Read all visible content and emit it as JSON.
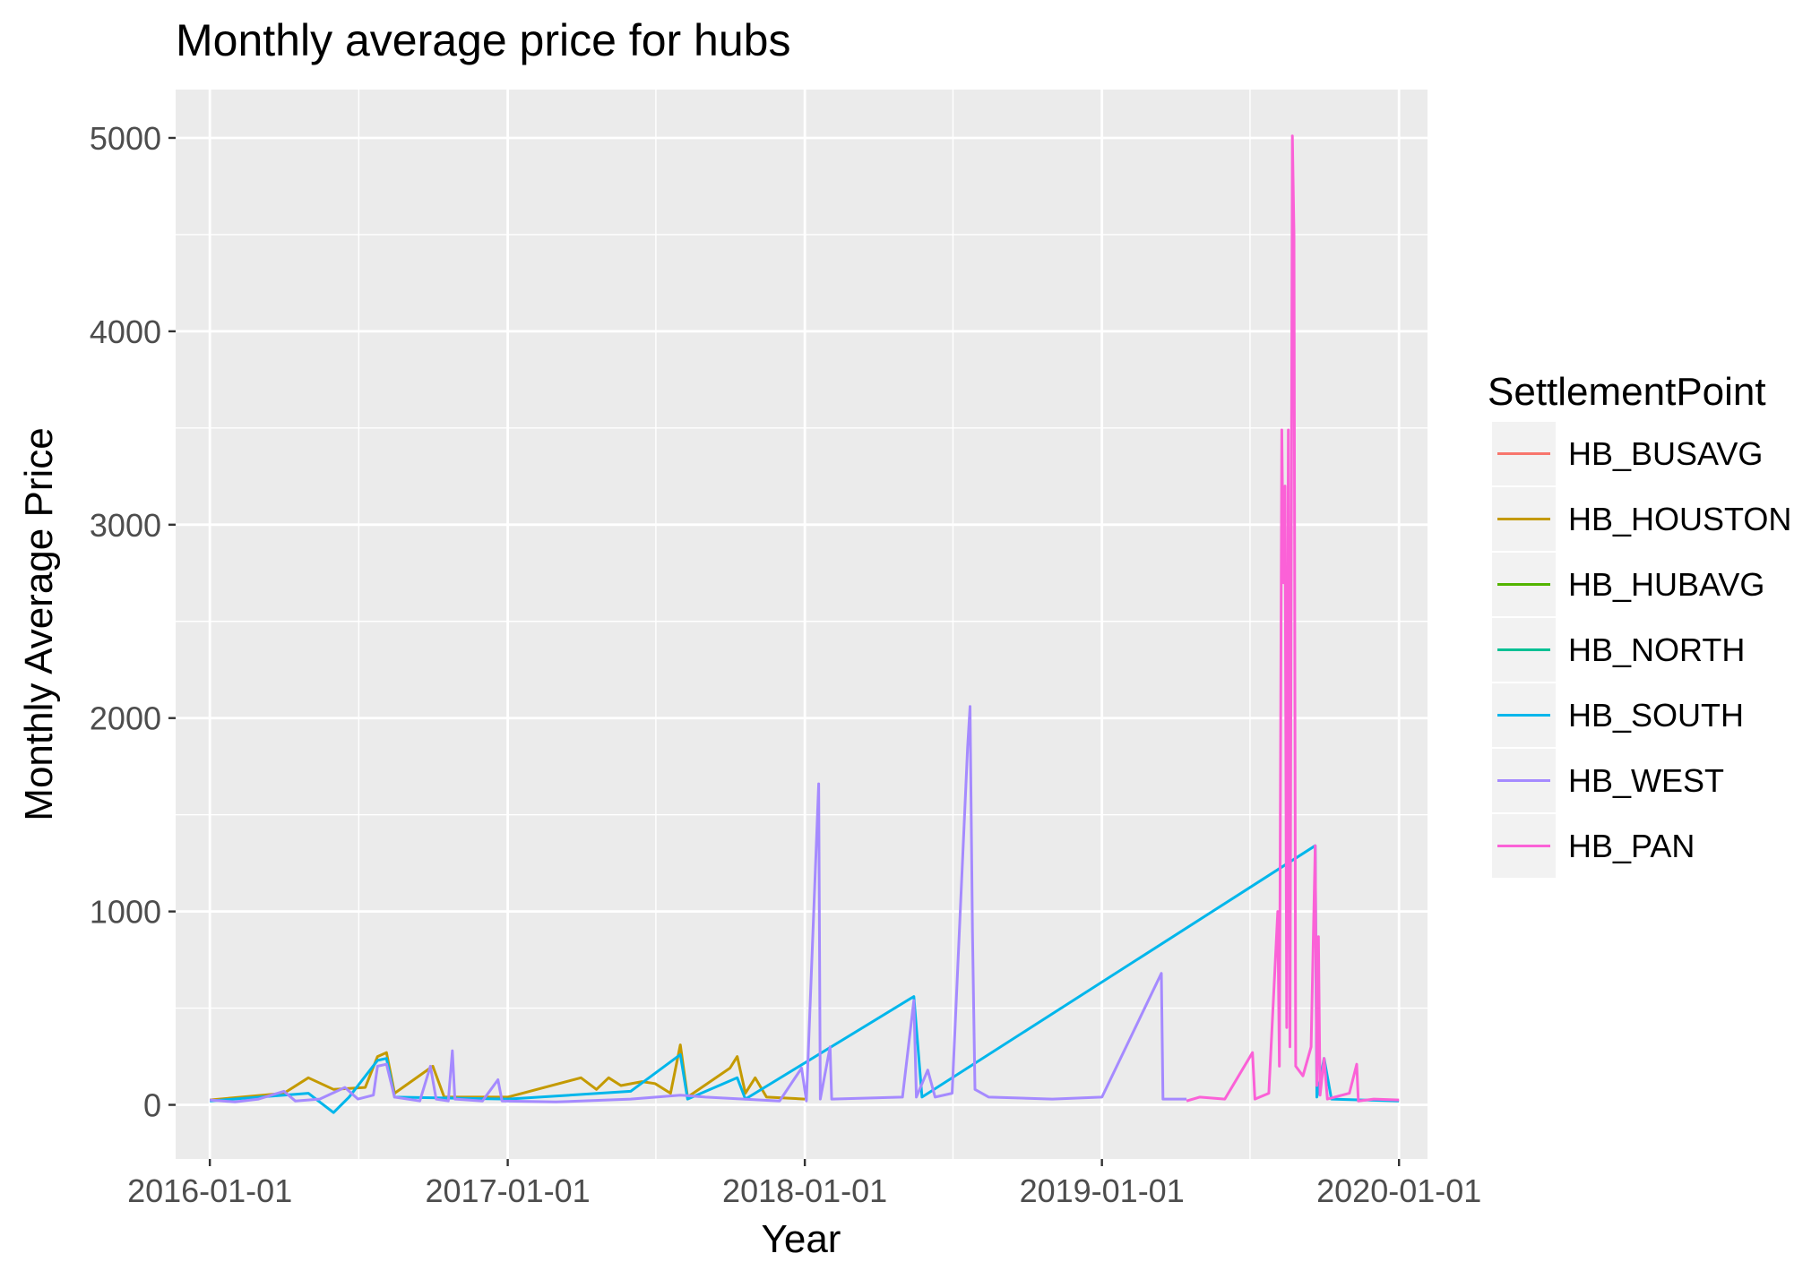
{
  "chart_data": {
    "type": "line",
    "title": "Monthly average price for hubs",
    "xlabel": "Year",
    "ylabel": "Monthly Average Price",
    "x_range": [
      "2015-11-20",
      "2020-02-05"
    ],
    "y_range": [
      -280,
      5250
    ],
    "x_ticks": [
      "2016-01-01",
      "2017-01-01",
      "2018-01-01",
      "2019-01-01",
      "2020-01-01"
    ],
    "y_ticks": [
      0,
      1000,
      2000,
      3000,
      4000,
      5000
    ],
    "y_tick_labels": [
      "0",
      "1000",
      "2000",
      "3000",
      "4000",
      "5000"
    ],
    "background": "#EBEBEB",
    "grid": true,
    "legend": {
      "title": "SettlementPoint",
      "position": "right",
      "entries": [
        {
          "name": "HB_BUSAVG",
          "color": "#F8766D"
        },
        {
          "name": "HB_HOUSTON",
          "color": "#C49A00"
        },
        {
          "name": "HB_HUBAVG",
          "color": "#53B400"
        },
        {
          "name": "HB_NORTH",
          "color": "#00C094"
        },
        {
          "name": "HB_SOUTH",
          "color": "#00B6EB"
        },
        {
          "name": "HB_WEST",
          "color": "#A58AFF"
        },
        {
          "name": "HB_PAN",
          "color": "#FB61D7"
        }
      ]
    },
    "series": [
      {
        "name": "HB_HOUSTON",
        "color": "#C49A00",
        "points": [
          [
            "2016-01-01",
            25
          ],
          [
            "2016-04-01",
            60
          ],
          [
            "2016-05-01",
            140
          ],
          [
            "2016-06-01",
            80
          ],
          [
            "2016-07-10",
            90
          ],
          [
            "2016-07-25",
            250
          ],
          [
            "2016-08-05",
            270
          ],
          [
            "2016-08-15",
            60
          ],
          [
            "2016-10-01",
            200
          ],
          [
            "2016-10-15",
            40
          ],
          [
            "2017-01-01",
            40
          ],
          [
            "2017-04-01",
            140
          ],
          [
            "2017-04-20",
            80
          ],
          [
            "2017-05-05",
            140
          ],
          [
            "2017-05-20",
            100
          ],
          [
            "2017-06-15",
            120
          ],
          [
            "2017-07-01",
            110
          ],
          [
            "2017-07-20",
            60
          ],
          [
            "2017-08-01",
            310
          ],
          [
            "2017-08-10",
            40
          ],
          [
            "2017-10-01",
            190
          ],
          [
            "2017-10-10",
            250
          ],
          [
            "2017-10-20",
            60
          ],
          [
            "2017-11-01",
            140
          ],
          [
            "2017-11-15",
            40
          ],
          [
            "2018-01-01",
            30
          ]
        ]
      },
      {
        "name": "HB_SOUTH",
        "color": "#00B6EB",
        "points": [
          [
            "2016-01-01",
            20
          ],
          [
            "2016-05-01",
            60
          ],
          [
            "2016-06-01",
            -40
          ],
          [
            "2016-06-20",
            40
          ],
          [
            "2016-07-25",
            230
          ],
          [
            "2016-08-05",
            240
          ],
          [
            "2016-08-15",
            40
          ],
          [
            "2017-01-01",
            30
          ],
          [
            "2017-06-01",
            70
          ],
          [
            "2017-08-01",
            260
          ],
          [
            "2017-08-10",
            30
          ],
          [
            "2017-10-10",
            140
          ],
          [
            "2017-10-20",
            30
          ],
          [
            "2018-05-15",
            560
          ],
          [
            "2018-05-25",
            40
          ],
          [
            "2019-09-20",
            1340
          ],
          [
            "2019-09-22",
            40
          ],
          [
            "2019-10-01",
            240
          ],
          [
            "2019-10-10",
            30
          ],
          [
            "2020-01-01",
            20
          ]
        ]
      },
      {
        "name": "HB_WEST",
        "color": "#A58AFF",
        "points": [
          [
            "2016-01-01",
            25
          ],
          [
            "2016-02-01",
            15
          ],
          [
            "2016-03-01",
            30
          ],
          [
            "2016-04-01",
            70
          ],
          [
            "2016-04-15",
            20
          ],
          [
            "2016-05-15",
            30
          ],
          [
            "2016-06-15",
            90
          ],
          [
            "2016-07-01",
            30
          ],
          [
            "2016-07-20",
            50
          ],
          [
            "2016-07-25",
            200
          ],
          [
            "2016-08-05",
            210
          ],
          [
            "2016-08-15",
            40
          ],
          [
            "2016-09-15",
            20
          ],
          [
            "2016-09-28",
            200
          ],
          [
            "2016-10-05",
            30
          ],
          [
            "2016-10-20",
            20
          ],
          [
            "2016-10-25",
            280
          ],
          [
            "2016-10-28",
            30
          ],
          [
            "2016-12-01",
            20
          ],
          [
            "2016-12-20",
            130
          ],
          [
            "2016-12-25",
            20
          ],
          [
            "2017-03-01",
            15
          ],
          [
            "2017-06-01",
            30
          ],
          [
            "2017-08-01",
            50
          ],
          [
            "2017-09-01",
            40
          ],
          [
            "2017-12-01",
            20
          ],
          [
            "2017-12-28",
            190
          ],
          [
            "2018-01-03",
            20
          ],
          [
            "2018-01-18",
            1660
          ],
          [
            "2018-01-20",
            30
          ],
          [
            "2018-02-01",
            300
          ],
          [
            "2018-02-03",
            30
          ],
          [
            "2018-05-01",
            40
          ],
          [
            "2018-05-15",
            540
          ],
          [
            "2018-05-18",
            40
          ],
          [
            "2018-06-01",
            180
          ],
          [
            "2018-06-10",
            40
          ],
          [
            "2018-07-01",
            60
          ],
          [
            "2018-07-20",
            1850
          ],
          [
            "2018-07-23",
            2060
          ],
          [
            "2018-07-26",
            900
          ],
          [
            "2018-07-29",
            80
          ],
          [
            "2018-08-15",
            40
          ],
          [
            "2018-11-01",
            30
          ],
          [
            "2019-01-01",
            40
          ],
          [
            "2019-03-15",
            680
          ],
          [
            "2019-03-17",
            30
          ],
          [
            "2019-04-15",
            30
          ]
        ]
      },
      {
        "name": "HB_PAN",
        "color": "#FB61D7",
        "points": [
          [
            "2019-04-15",
            20
          ],
          [
            "2019-05-01",
            40
          ],
          [
            "2019-06-01",
            30
          ],
          [
            "2019-07-05",
            270
          ],
          [
            "2019-07-08",
            30
          ],
          [
            "2019-07-25",
            60
          ],
          [
            "2019-08-05",
            1000
          ],
          [
            "2019-08-07",
            200
          ],
          [
            "2019-08-10",
            3490
          ],
          [
            "2019-08-12",
            2700
          ],
          [
            "2019-08-14",
            3200
          ],
          [
            "2019-08-16",
            400
          ],
          [
            "2019-08-18",
            3490
          ],
          [
            "2019-08-20",
            300
          ],
          [
            "2019-08-23",
            5010
          ],
          [
            "2019-08-25",
            4500
          ],
          [
            "2019-08-27",
            200
          ],
          [
            "2019-09-05",
            150
          ],
          [
            "2019-09-15",
            300
          ],
          [
            "2019-09-20",
            1340
          ],
          [
            "2019-09-22",
            100
          ],
          [
            "2019-09-24",
            870
          ],
          [
            "2019-09-26",
            50
          ],
          [
            "2019-10-01",
            240
          ],
          [
            "2019-10-05",
            30
          ],
          [
            "2019-11-01",
            60
          ],
          [
            "2019-11-10",
            210
          ],
          [
            "2019-11-12",
            20
          ],
          [
            "2019-12-01",
            30
          ],
          [
            "2020-01-01",
            25
          ]
        ]
      }
    ]
  }
}
